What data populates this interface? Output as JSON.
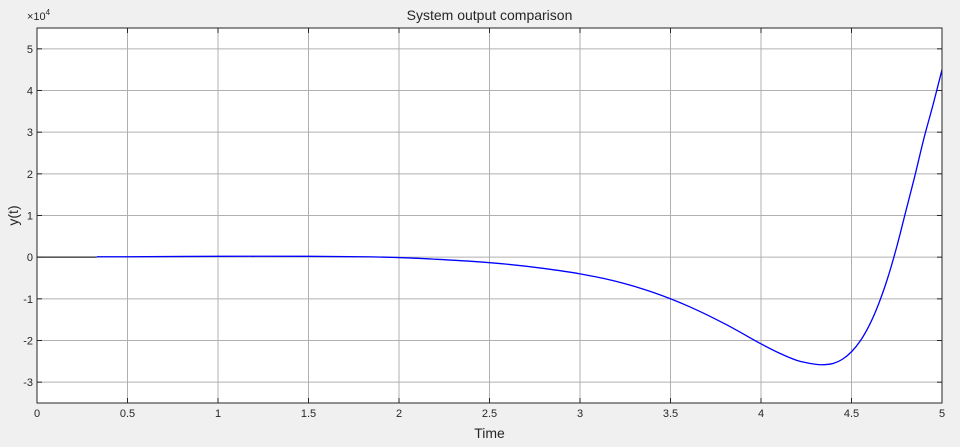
{
  "chart_data": {
    "type": "line",
    "title": "System output comparison",
    "xlabel": "Time",
    "ylabel": "y(t)",
    "exponent_label": "×10",
    "exponent_power": "4",
    "xlim": [
      0,
      5
    ],
    "ylim": [
      -3.5,
      5.5
    ],
    "xticks": [
      0,
      0.5,
      1,
      1.5,
      2,
      2.5,
      3,
      3.5,
      4,
      4.5,
      5
    ],
    "yticks": [
      -3,
      -2,
      -1,
      0,
      1,
      2,
      3,
      4,
      5
    ],
    "x_tick_labels": [
      "0",
      "0.5",
      "1",
      "1.5",
      "2",
      "2.5",
      "3",
      "3.5",
      "4",
      "4.5",
      "5"
    ],
    "y_tick_labels": [
      "-3",
      "-2",
      "-1",
      "0",
      "1",
      "2",
      "3",
      "4",
      "5"
    ],
    "grid": true,
    "line_color": "#0000ff",
    "reference_line": {
      "y": 0,
      "x_start": 0,
      "x_end": 0.33,
      "color": "#000000"
    },
    "series": [
      {
        "x": [
          0.33,
          0.5,
          1.0,
          1.5,
          1.8,
          2.0,
          2.2,
          2.4,
          2.6,
          2.8,
          3.0,
          3.2,
          3.4,
          3.6,
          3.8,
          4.0,
          4.1,
          4.2,
          4.3,
          4.35,
          4.4,
          4.45,
          4.5,
          4.55,
          4.6,
          4.65,
          4.7,
          4.75,
          4.8,
          4.85,
          4.9,
          4.95,
          5.0
        ],
        "y": [
          0.01,
          0.01,
          0.02,
          0.02,
          0.01,
          -0.01,
          -0.05,
          -0.1,
          -0.17,
          -0.27,
          -0.4,
          -0.58,
          -0.84,
          -1.18,
          -1.6,
          -2.08,
          -2.3,
          -2.48,
          -2.57,
          -2.58,
          -2.55,
          -2.45,
          -2.27,
          -2.0,
          -1.62,
          -1.12,
          -0.5,
          0.25,
          1.1,
          1.95,
          2.85,
          3.65,
          4.5
        ]
      }
    ]
  }
}
